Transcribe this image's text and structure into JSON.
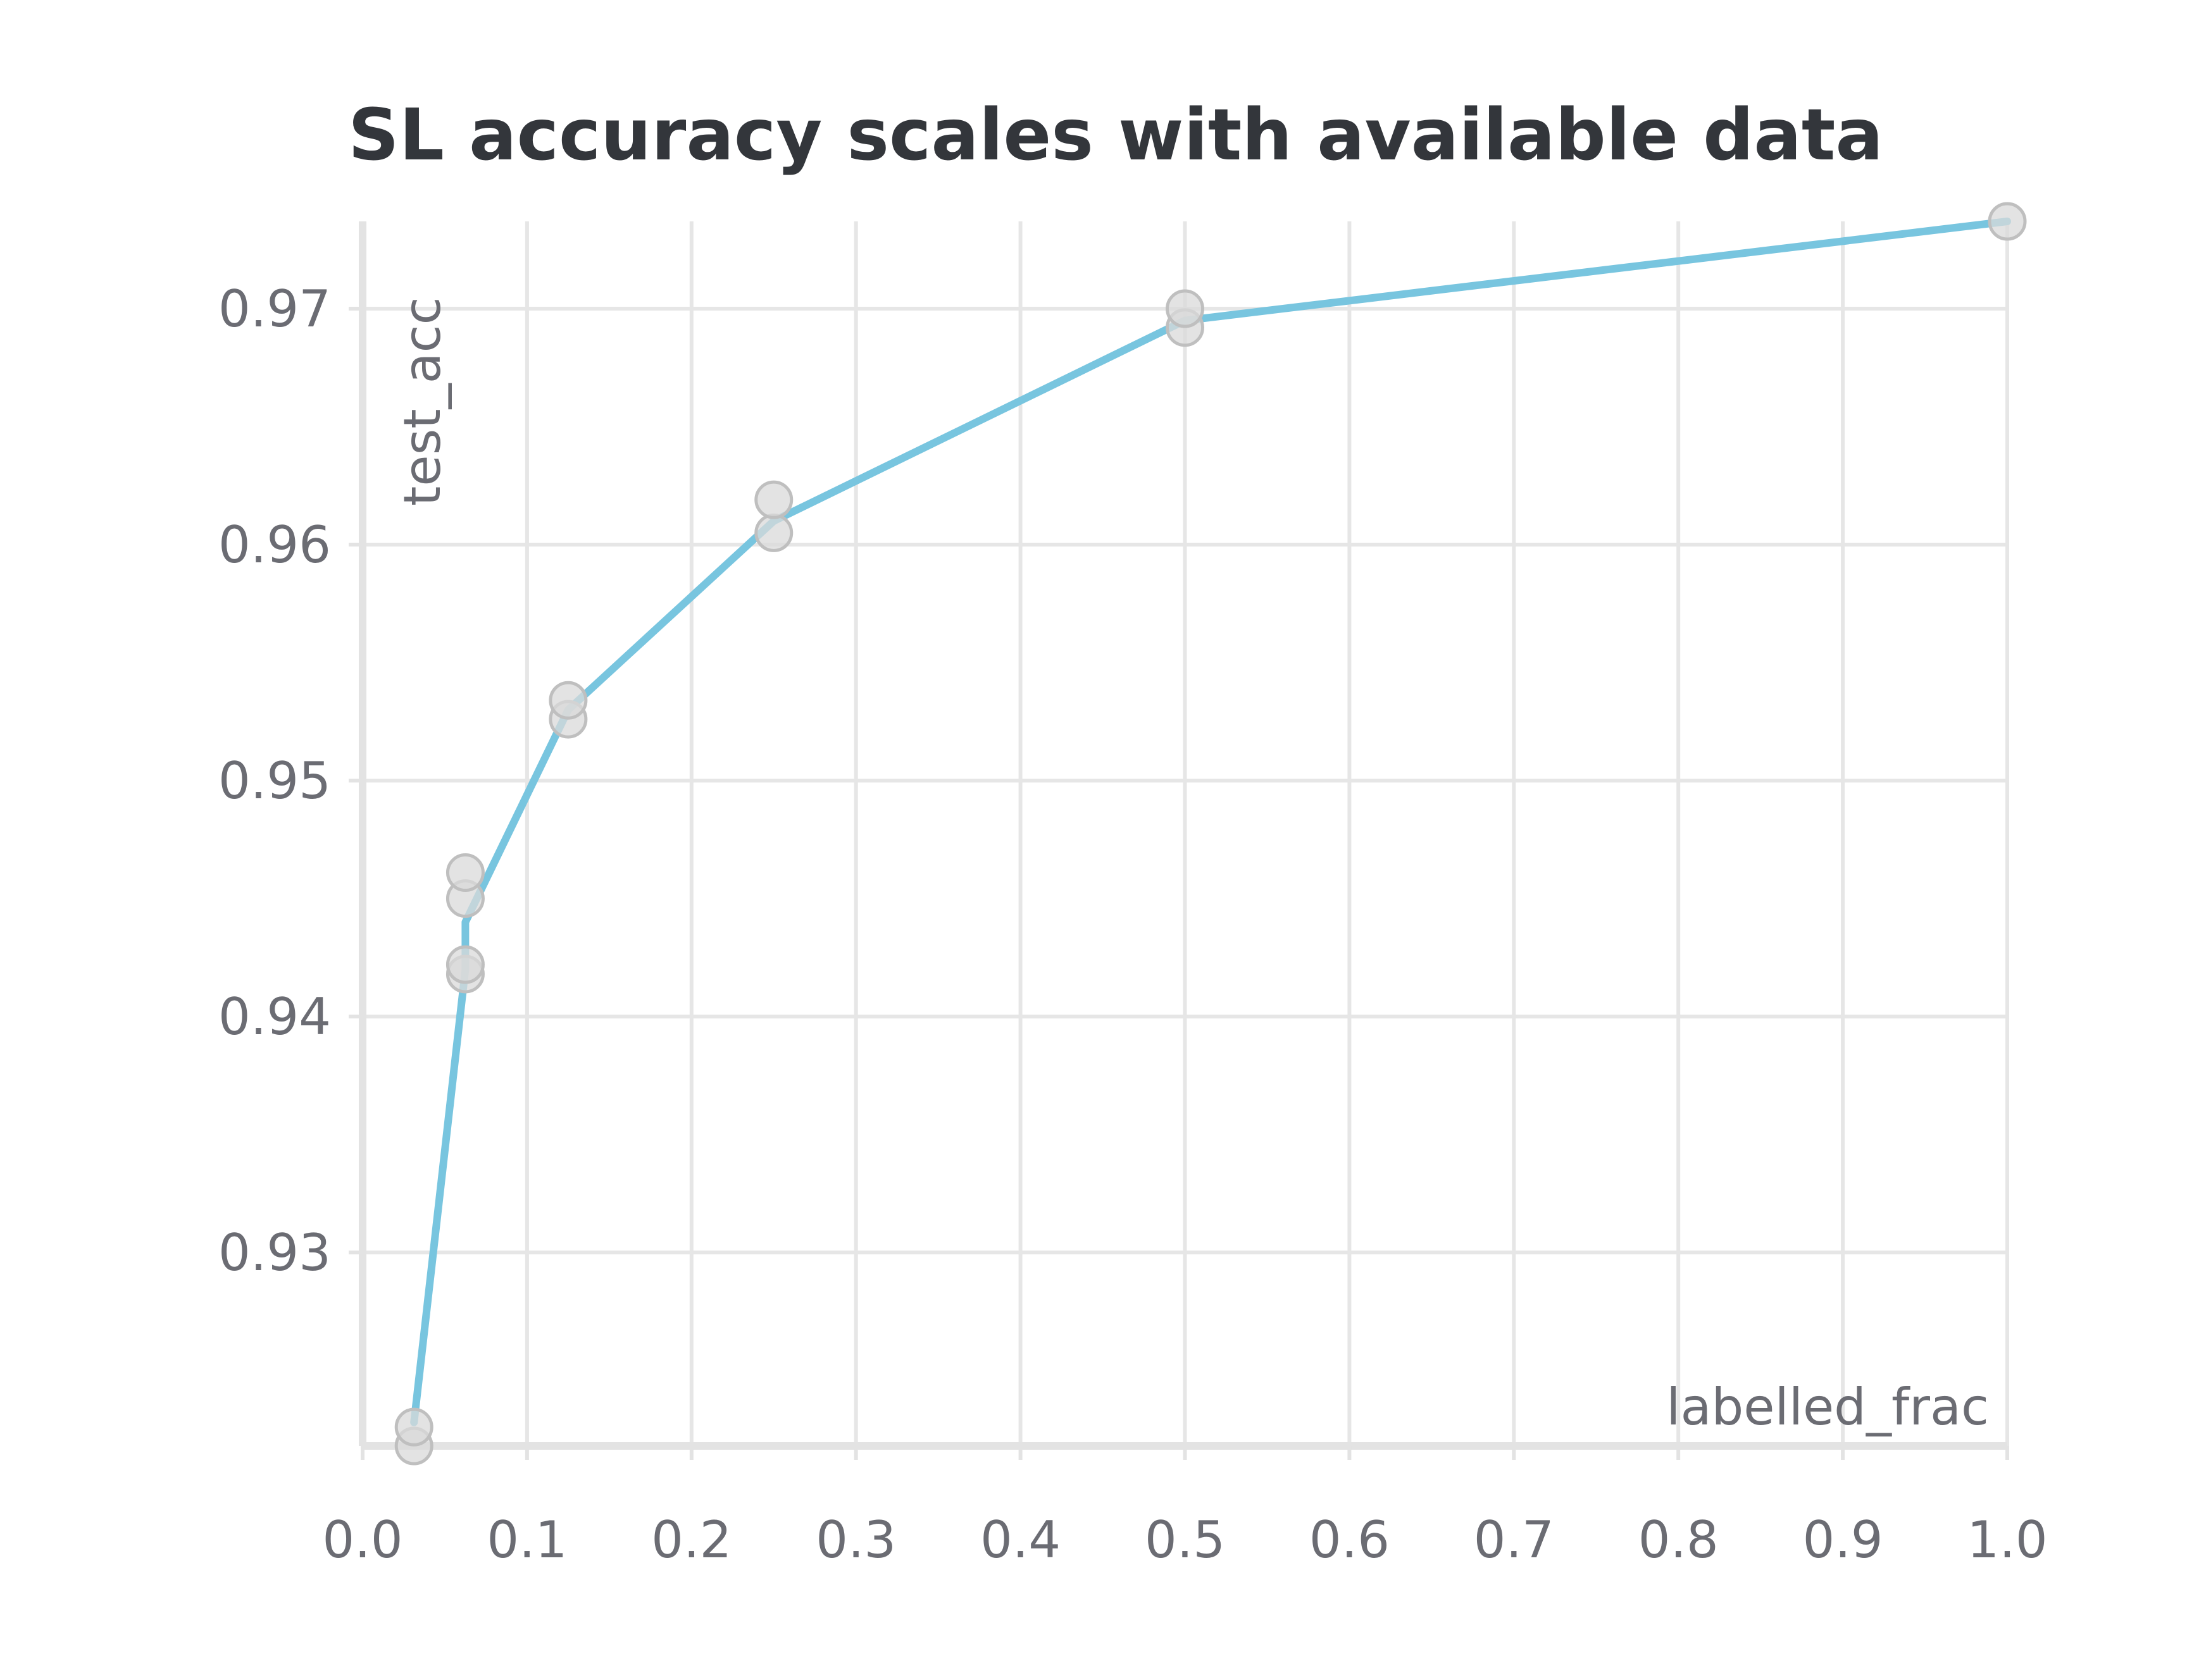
{
  "chart_data": {
    "type": "line",
    "title": "SL accuracy scales with available data",
    "xlabel": "labelled_frac",
    "ylabel": "test_acc",
    "xlim": [
      0.0,
      1.0
    ],
    "ylim": [
      0.9218,
      0.9737
    ],
    "xticks": [
      0.0,
      0.1,
      0.2,
      0.3,
      0.4,
      0.5,
      0.6,
      0.7,
      0.8,
      0.9,
      1.0
    ],
    "xtick_labels": [
      "0.0",
      "0.1",
      "0.2",
      "0.3",
      "0.4",
      "0.5",
      "0.6",
      "0.7",
      "0.8",
      "0.9",
      "1.0"
    ],
    "yticks": [
      0.93,
      0.94,
      0.95,
      0.96,
      0.97
    ],
    "ytick_labels": [
      "0.93",
      "0.94",
      "0.95",
      "0.96",
      "0.97"
    ],
    "grid": true,
    "series": [
      {
        "color": "#78c5df",
        "x": [
          0.03125,
          0.0625,
          0.0625,
          0.125,
          0.25,
          0.5,
          1.0
        ],
        "y": [
          0.9228,
          0.942,
          0.944,
          0.953,
          0.961,
          0.9695,
          0.9737
        ]
      }
    ],
    "points": [
      {
        "x": 0.03125,
        "y": 0.9218
      },
      {
        "x": 0.03125,
        "y": 0.9226
      },
      {
        "x": 0.0625,
        "y": 0.9418
      },
      {
        "x": 0.0625,
        "y": 0.9422
      },
      {
        "x": 0.0625,
        "y": 0.945
      },
      {
        "x": 0.0625,
        "y": 0.9461
      },
      {
        "x": 0.125,
        "y": 0.9526
      },
      {
        "x": 0.125,
        "y": 0.9534
      },
      {
        "x": 0.25,
        "y": 0.9605
      },
      {
        "x": 0.25,
        "y": 0.9619
      },
      {
        "x": 0.5,
        "y": 0.9692
      },
      {
        "x": 0.5,
        "y": 0.97
      },
      {
        "x": 1.0,
        "y": 0.9737
      }
    ]
  }
}
